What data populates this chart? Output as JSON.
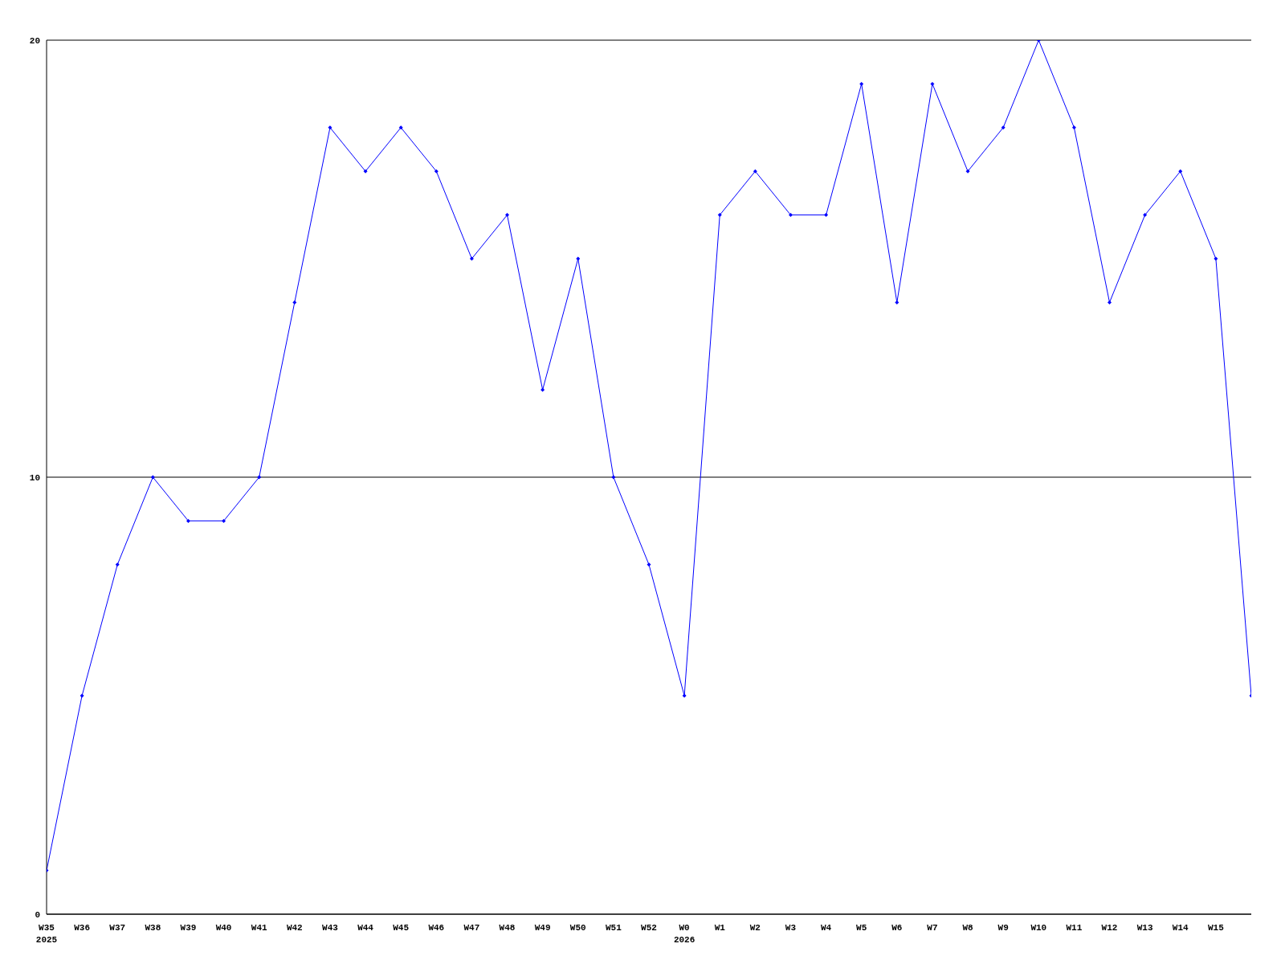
{
  "chart_data": {
    "type": "line",
    "categories": [
      "W35\n2025",
      "W36",
      "W37",
      "W38",
      "W39",
      "W40",
      "W41",
      "W42",
      "W43",
      "W44",
      "W45",
      "W46",
      "W47",
      "W48",
      "W49",
      "W50",
      "W51",
      "W52",
      "W0\n2026",
      "W1",
      "W2",
      "W3",
      "W4",
      "W5",
      "W6",
      "W7",
      "W8",
      "W9",
      "W10",
      "W11",
      "W12",
      "W13",
      "W14",
      "W15",
      null
    ],
    "series": [
      {
        "color": "#0000ff",
        "values": [
          1,
          5,
          8,
          10,
          9,
          9,
          10,
          14,
          18,
          17,
          18,
          17,
          15,
          16,
          12,
          15,
          10,
          8,
          5,
          16,
          17,
          16,
          16,
          19,
          14,
          19,
          17,
          18,
          20,
          18,
          14,
          16,
          17,
          15,
          5
        ]
      }
    ],
    "ylim": [
      0,
      20
    ],
    "yticks": [
      0,
      10,
      20
    ],
    "grid": "y",
    "marker": "diamond",
    "line_style": "solid"
  }
}
